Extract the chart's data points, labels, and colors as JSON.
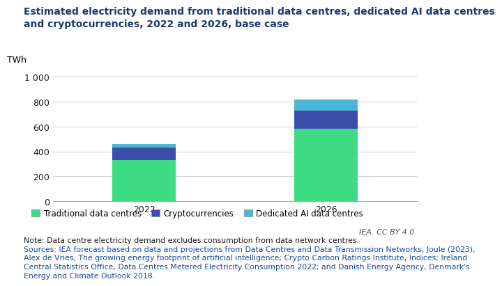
{
  "title_line1": "Estimated electricity demand from traditional data centres, dedicated AI data centres",
  "title_line2": "and cryptocurrencies, 2022 and 2026, base case",
  "categories": [
    "2022",
    "2026"
  ],
  "traditional": [
    330,
    580
  ],
  "crypto": [
    100,
    145
  ],
  "dedicated_ai": [
    30,
    90
  ],
  "colors": {
    "traditional": "#3ddc84",
    "crypto": "#3b4faa",
    "dedicated_ai": "#4ab8d4"
  },
  "ylabel": "TWh",
  "ylim": [
    0,
    1050
  ],
  "ytick_labels": [
    "0",
    "200",
    "400",
    "600",
    "800",
    "1 000"
  ],
  "ytick_values": [
    0,
    200,
    400,
    600,
    800,
    1000
  ],
  "legend_labels": [
    "Traditional data centres",
    "Cryptocurrencies",
    "Dedicated AI data centres"
  ],
  "note_line1": "Note: Data centre electricity demand excludes consumption from data network centres.",
  "sources_line1": "Sources: IEA forecast based on data and projections from Data Centres and Data Transmission Networks; Joule (2023),",
  "sources_line2": "Alex de Vries, The growing energy footprint of artificial intelligence; Crypto Carbon Ratings Institute, Indices; Ireland",
  "sources_line3": "Central Statistics Office, Data Centres Metered Electricity Consumption 2022; and Danish Energy Agency, Denmark's",
  "sources_line4": "Energy and Climate Outlook 2018.",
  "iea_credit": "IEA. CC BY 4.0.",
  "bg_color": "#ffffff",
  "grid_color": "#cccccc",
  "title_color": "#1a3a6b",
  "text_color": "#1a1a1a",
  "bar_width": 0.35,
  "title_fontsize": 10.0,
  "axis_fontsize": 9.0,
  "legend_fontsize": 8.5,
  "note_fontsize": 7.8
}
